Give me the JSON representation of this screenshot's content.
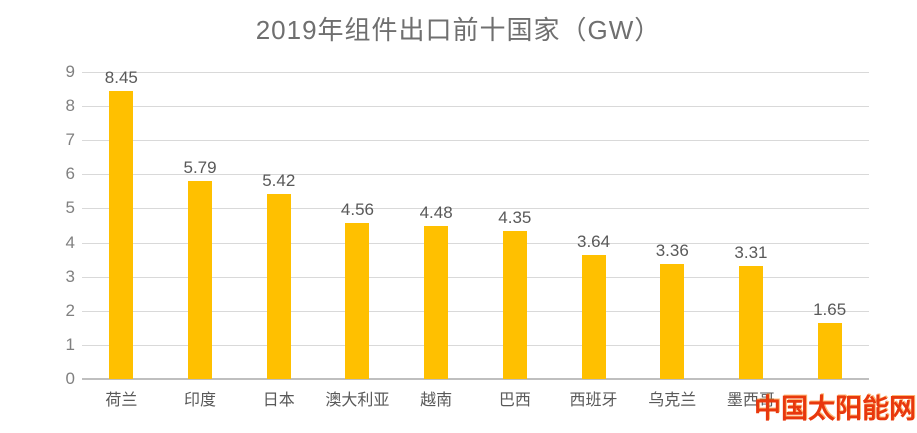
{
  "chart_data": {
    "type": "bar",
    "title": "2019年组件出口前十国家（GW）",
    "categories": [
      "荷兰",
      "印度",
      "日本",
      "澳大利亚",
      "越南",
      "巴西",
      "西班牙",
      "乌克兰",
      "墨西哥",
      ""
    ],
    "values": [
      8.45,
      5.79,
      5.42,
      4.56,
      4.48,
      4.35,
      3.64,
      3.36,
      3.31,
      1.65
    ],
    "data_labels": [
      "8.45",
      "5.79",
      "5.42",
      "4.56",
      "4.48",
      "4.35",
      "3.64",
      "3.36",
      "3.31",
      "1.65"
    ],
    "xlabel": "",
    "ylabel": "",
    "ylim": [
      0,
      9
    ],
    "ytick_interval": 1,
    "yticks": [
      "0",
      "1",
      "2",
      "3",
      "4",
      "5",
      "6",
      "7",
      "8",
      "9"
    ],
    "grid": true,
    "legend": "none",
    "colors": {
      "bar": "#FFC000",
      "gridline": "#D9D9D9",
      "axis_line": "#BFBFBF",
      "title_text": "#6F6F6F",
      "tick_text": "#808080",
      "label_text": "#595959"
    }
  },
  "watermark": {
    "text": "中国太阳能网",
    "color": "#E8380D"
  }
}
